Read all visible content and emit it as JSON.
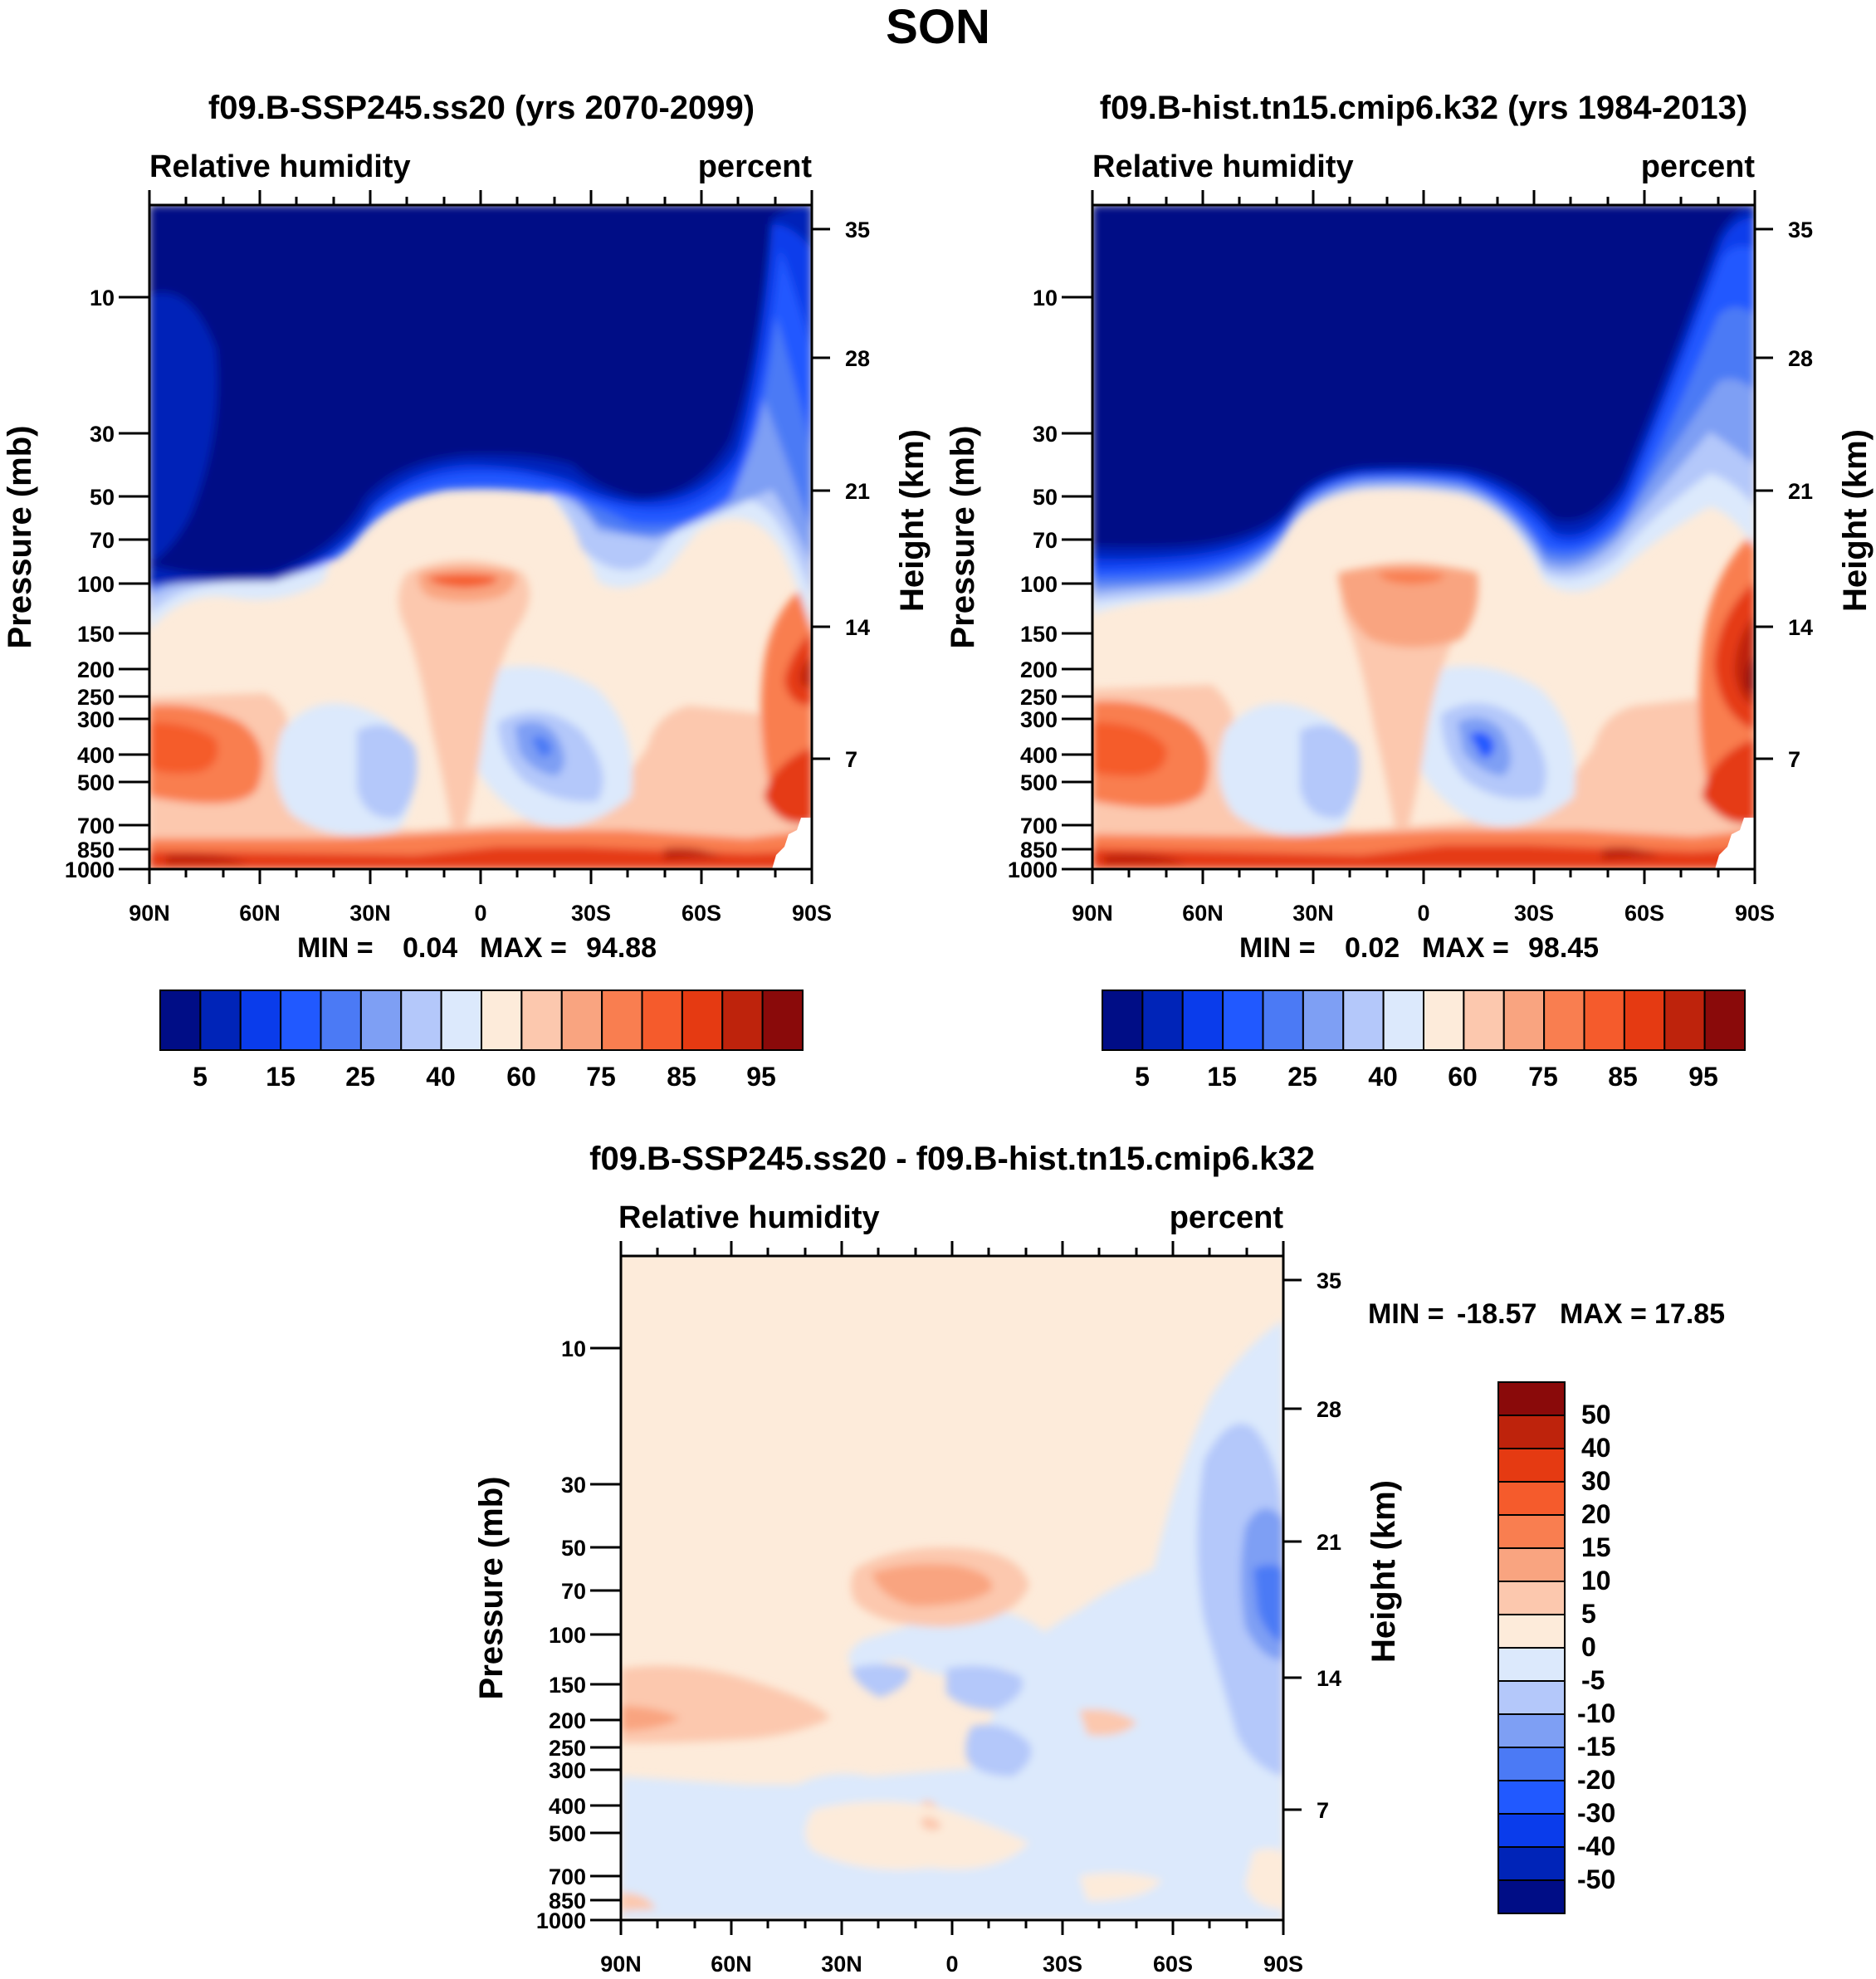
{
  "figure": {
    "title": "SON"
  },
  "chart_data": [
    {
      "type": "contour",
      "title": "f09.B-SSP245.ss20 (yrs 2070-2099)",
      "variable": "Relative humidity",
      "units": "percent",
      "xlabel": "",
      "ylabel": "Pressure (mb)",
      "y2label": "Height (km)",
      "x_ticks": [
        "90N",
        "60N",
        "30N",
        "0",
        "30S",
        "60S",
        "90S"
      ],
      "y_ticks": [
        "10",
        "30",
        "50",
        "70",
        "100",
        "150",
        "200",
        "250",
        "300",
        "400",
        "500",
        "700",
        "850",
        "1000"
      ],
      "y2_ticks": [
        "35",
        "28",
        "21",
        "14",
        "7"
      ],
      "min_label": "MIN =",
      "min": "0.04",
      "max_label": "MAX =",
      "max": "94.88",
      "colorbar": {
        "orientation": "horizontal",
        "labels": [
          "5",
          "15",
          "25",
          "40",
          "60",
          "75",
          "85",
          "95"
        ],
        "colors": [
          "#000D86",
          "#0024B8",
          "#0A3CEB",
          "#2159FF",
          "#4B7AF5",
          "#7E9FF4",
          "#B4C8FA",
          "#DCE9FC",
          "#FDEBDA",
          "#FCC8AE",
          "#F9A480",
          "#F97E50",
          "#F55B2C",
          "#E53A12",
          "#BE230C",
          "#8A0A0A"
        ]
      }
    },
    {
      "type": "contour",
      "title": "f09.B-hist.tn15.cmip6.k32 (yrs 1984-2013)",
      "variable": "Relative humidity",
      "units": "percent",
      "xlabel": "",
      "ylabel": "Pressure (mb)",
      "y2label": "Height (km)",
      "x_ticks": [
        "90N",
        "60N",
        "30N",
        "0",
        "30S",
        "60S",
        "90S"
      ],
      "y_ticks": [
        "10",
        "30",
        "50",
        "70",
        "100",
        "150",
        "200",
        "250",
        "300",
        "400",
        "500",
        "700",
        "850",
        "1000"
      ],
      "y2_ticks": [
        "35",
        "28",
        "21",
        "14",
        "7"
      ],
      "min_label": "MIN =",
      "min": "0.02",
      "max_label": "MAX =",
      "max": "98.45",
      "colorbar": {
        "orientation": "horizontal",
        "labels": [
          "5",
          "15",
          "25",
          "40",
          "60",
          "75",
          "85",
          "95"
        ],
        "colors": [
          "#000D86",
          "#0024B8",
          "#0A3CEB",
          "#2159FF",
          "#4B7AF5",
          "#7E9FF4",
          "#B4C8FA",
          "#DCE9FC",
          "#FDEBDA",
          "#FCC8AE",
          "#F9A480",
          "#F97E50",
          "#F55B2C",
          "#E53A12",
          "#BE230C",
          "#8A0A0A"
        ]
      }
    },
    {
      "type": "contour",
      "title": "f09.B-SSP245.ss20 - f09.B-hist.tn15.cmip6.k32",
      "variable": "Relative humidity",
      "units": "percent",
      "xlabel": "",
      "ylabel": "Pressure (mb)",
      "y2label": "Height (km)",
      "x_ticks": [
        "90N",
        "60N",
        "30N",
        "0",
        "30S",
        "60S",
        "90S"
      ],
      "y_ticks": [
        "10",
        "30",
        "50",
        "70",
        "100",
        "150",
        "200",
        "250",
        "300",
        "400",
        "500",
        "700",
        "850",
        "1000"
      ],
      "y2_ticks": [
        "35",
        "28",
        "21",
        "14",
        "7"
      ],
      "min_label": "MIN =",
      "min": "-18.57",
      "max_label": "MAX =",
      "max": "17.85",
      "colorbar": {
        "orientation": "vertical",
        "labels": [
          "50",
          "40",
          "30",
          "20",
          "15",
          "10",
          "5",
          "0",
          "-5",
          "-10",
          "-15",
          "-20",
          "-30",
          "-40",
          "-50"
        ],
        "colors": [
          "#8A0A0A",
          "#BE230C",
          "#E53A12",
          "#F55B2C",
          "#F97E50",
          "#F9A480",
          "#FCC8AE",
          "#FDEBDA",
          "#DCE9FC",
          "#B4C8FA",
          "#7E9FF4",
          "#4B7AF5",
          "#2159FF",
          "#0A3CEB",
          "#0024B8",
          "#000D86"
        ]
      }
    }
  ]
}
